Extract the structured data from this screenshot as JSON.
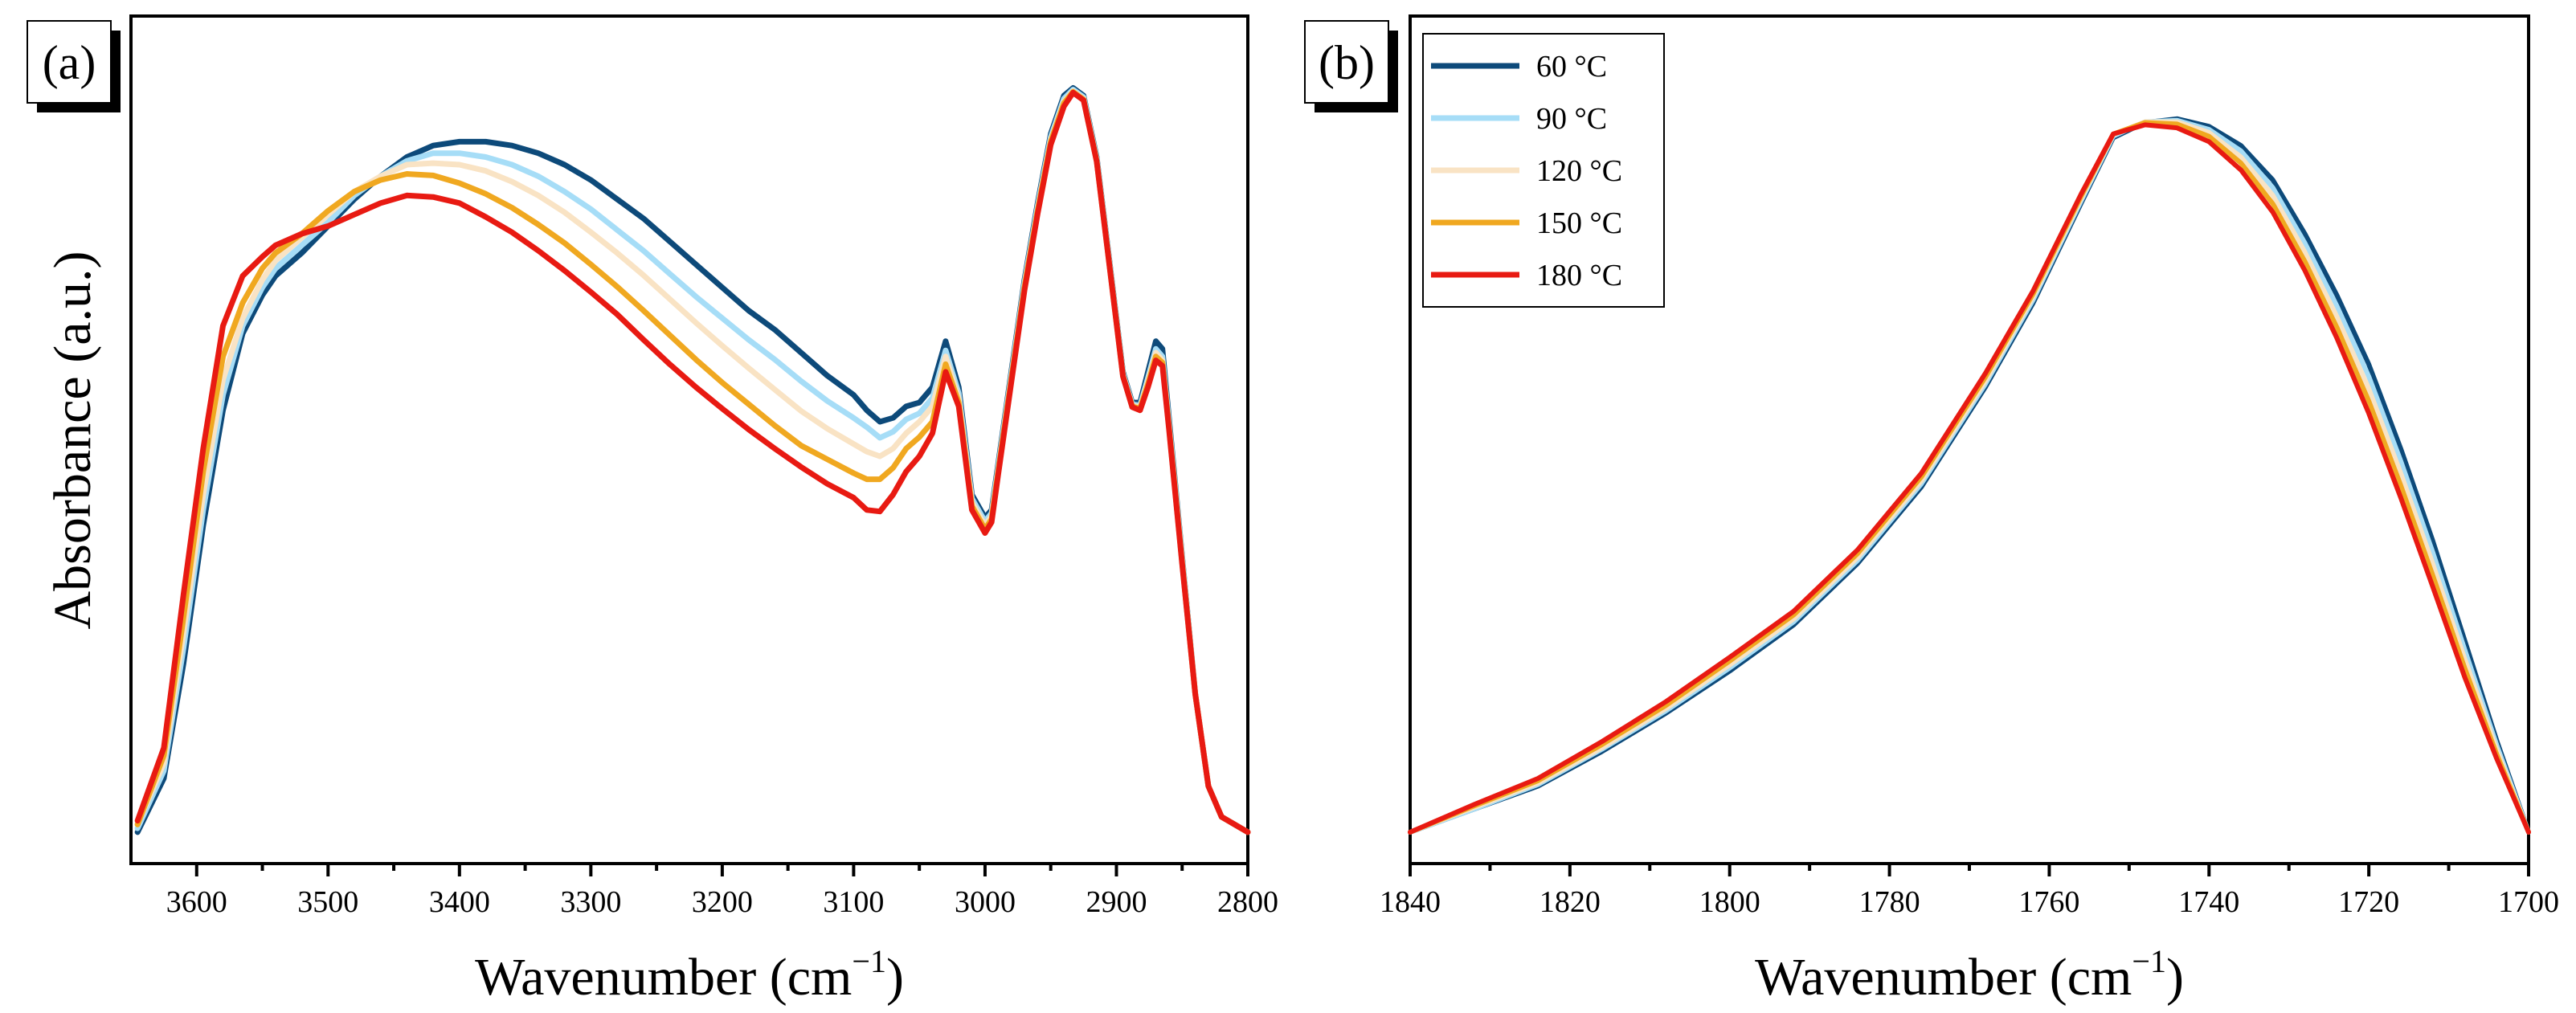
{
  "chart_data": [
    {
      "panel": "(a)",
      "type": "line",
      "xlabel_main": "Wavenumber (cm",
      "xlabel_sup": "−1",
      "xlabel_close": ")",
      "ylabel": "Absorbance (a.u.)",
      "xlim": [
        3650,
        2800
      ],
      "ylim": [
        0,
        1
      ],
      "xticks": [
        3600,
        3500,
        3400,
        3300,
        3200,
        3100,
        3000,
        2900,
        2800
      ],
      "series": [
        {
          "name": "60 °C",
          "color": "#0d4a7a",
          "x": [
            3645,
            3625,
            3610,
            3595,
            3580,
            3565,
            3550,
            3540,
            3520,
            3500,
            3480,
            3460,
            3440,
            3420,
            3400,
            3380,
            3360,
            3340,
            3320,
            3300,
            3280,
            3260,
            3240,
            3220,
            3200,
            3180,
            3160,
            3140,
            3120,
            3100,
            3090,
            3080,
            3070,
            3060,
            3050,
            3040,
            3030,
            3020,
            3010,
            3000,
            2995,
            2990,
            2980,
            2970,
            2960,
            2950,
            2940,
            2933,
            2925,
            2915,
            2905,
            2895,
            2888,
            2882,
            2876,
            2870,
            2865,
            2860,
            2850,
            2840,
            2830,
            2820,
            2810,
            2800
          ],
          "y": [
            0.02,
            0.09,
            0.24,
            0.42,
            0.57,
            0.67,
            0.72,
            0.745,
            0.775,
            0.81,
            0.845,
            0.875,
            0.9,
            0.915,
            0.92,
            0.92,
            0.915,
            0.905,
            0.89,
            0.87,
            0.845,
            0.82,
            0.79,
            0.76,
            0.73,
            0.7,
            0.675,
            0.645,
            0.615,
            0.59,
            0.57,
            0.555,
            0.56,
            0.575,
            0.58,
            0.6,
            0.66,
            0.6,
            0.46,
            0.43,
            0.44,
            0.5,
            0.62,
            0.74,
            0.84,
            0.93,
            0.98,
            0.99,
            0.98,
            0.9,
            0.76,
            0.62,
            0.58,
            0.58,
            0.62,
            0.66,
            0.65,
            0.56,
            0.38,
            0.2,
            0.08,
            0.04,
            0.03,
            0.02
          ]
        },
        {
          "name": "90 °C",
          "color": "#a6ddf7",
          "x": [
            3645,
            3625,
            3610,
            3595,
            3580,
            3565,
            3550,
            3540,
            3520,
            3500,
            3480,
            3460,
            3440,
            3420,
            3400,
            3380,
            3360,
            3340,
            3320,
            3300,
            3280,
            3260,
            3240,
            3220,
            3200,
            3180,
            3160,
            3140,
            3120,
            3100,
            3090,
            3080,
            3070,
            3060,
            3050,
            3040,
            3030,
            3020,
            3010,
            3000,
            2995,
            2990,
            2980,
            2970,
            2960,
            2950,
            2940,
            2933,
            2925,
            2915,
            2905,
            2895,
            2888,
            2882,
            2876,
            2870,
            2865,
            2860,
            2850,
            2840,
            2830,
            2820,
            2810,
            2800
          ],
          "y": [
            0.025,
            0.1,
            0.26,
            0.44,
            0.59,
            0.68,
            0.73,
            0.755,
            0.785,
            0.815,
            0.85,
            0.875,
            0.895,
            0.905,
            0.905,
            0.9,
            0.89,
            0.875,
            0.855,
            0.832,
            0.805,
            0.778,
            0.748,
            0.718,
            0.69,
            0.662,
            0.636,
            0.608,
            0.582,
            0.56,
            0.548,
            0.534,
            0.542,
            0.558,
            0.566,
            0.586,
            0.648,
            0.592,
            0.455,
            0.425,
            0.436,
            0.496,
            0.616,
            0.736,
            0.836,
            0.926,
            0.976,
            0.988,
            0.978,
            0.898,
            0.758,
            0.618,
            0.578,
            0.576,
            0.612,
            0.65,
            0.64,
            0.554,
            0.378,
            0.2,
            0.08,
            0.04,
            0.03,
            0.02
          ]
        },
        {
          "name": "120 °C",
          "color": "#f9e3c4",
          "x": [
            3645,
            3625,
            3610,
            3595,
            3580,
            3565,
            3550,
            3540,
            3520,
            3500,
            3480,
            3460,
            3440,
            3420,
            3400,
            3380,
            3360,
            3340,
            3320,
            3300,
            3280,
            3260,
            3240,
            3220,
            3200,
            3180,
            3160,
            3140,
            3120,
            3100,
            3090,
            3080,
            3070,
            3060,
            3050,
            3040,
            3030,
            3020,
            3010,
            3000,
            2995,
            2990,
            2980,
            2970,
            2960,
            2950,
            2940,
            2933,
            2925,
            2915,
            2905,
            2895,
            2888,
            2882,
            2876,
            2870,
            2865,
            2860,
            2850,
            2840,
            2830,
            2820,
            2810,
            2800
          ],
          "y": [
            0.03,
            0.11,
            0.28,
            0.46,
            0.61,
            0.69,
            0.74,
            0.765,
            0.795,
            0.825,
            0.855,
            0.875,
            0.89,
            0.892,
            0.89,
            0.882,
            0.868,
            0.85,
            0.828,
            0.802,
            0.775,
            0.746,
            0.715,
            0.684,
            0.654,
            0.625,
            0.597,
            0.569,
            0.546,
            0.526,
            0.516,
            0.51,
            0.52,
            0.54,
            0.555,
            0.575,
            0.64,
            0.585,
            0.45,
            0.42,
            0.432,
            0.492,
            0.612,
            0.732,
            0.832,
            0.922,
            0.972,
            0.986,
            0.976,
            0.896,
            0.756,
            0.616,
            0.576,
            0.574,
            0.608,
            0.645,
            0.635,
            0.55,
            0.375,
            0.2,
            0.08,
            0.04,
            0.03,
            0.02
          ]
        },
        {
          "name": "150 °C",
          "color": "#f0a820",
          "x": [
            3645,
            3625,
            3610,
            3595,
            3580,
            3565,
            3550,
            3540,
            3520,
            3500,
            3480,
            3460,
            3440,
            3420,
            3400,
            3380,
            3360,
            3340,
            3320,
            3300,
            3280,
            3260,
            3240,
            3220,
            3200,
            3180,
            3160,
            3140,
            3120,
            3100,
            3090,
            3080,
            3070,
            3060,
            3050,
            3040,
            3030,
            3020,
            3010,
            3000,
            2995,
            2990,
            2980,
            2970,
            2960,
            2950,
            2940,
            2933,
            2925,
            2915,
            2905,
            2895,
            2888,
            2882,
            2876,
            2870,
            2865,
            2860,
            2850,
            2840,
            2830,
            2820,
            2810,
            2800
          ],
          "y": [
            0.03,
            0.12,
            0.3,
            0.49,
            0.64,
            0.71,
            0.755,
            0.775,
            0.8,
            0.83,
            0.855,
            0.87,
            0.878,
            0.876,
            0.866,
            0.852,
            0.834,
            0.812,
            0.788,
            0.76,
            0.731,
            0.7,
            0.668,
            0.636,
            0.606,
            0.578,
            0.55,
            0.524,
            0.506,
            0.488,
            0.48,
            0.48,
            0.495,
            0.52,
            0.535,
            0.555,
            0.63,
            0.58,
            0.445,
            0.415,
            0.428,
            0.49,
            0.61,
            0.73,
            0.83,
            0.92,
            0.97,
            0.985,
            0.975,
            0.895,
            0.755,
            0.615,
            0.575,
            0.572,
            0.604,
            0.64,
            0.632,
            0.548,
            0.372,
            0.2,
            0.08,
            0.04,
            0.03,
            0.02
          ]
        },
        {
          "name": "180 °C",
          "color": "#e81a12",
          "x": [
            3645,
            3625,
            3610,
            3595,
            3580,
            3565,
            3550,
            3540,
            3520,
            3500,
            3480,
            3460,
            3440,
            3420,
            3400,
            3380,
            3360,
            3340,
            3320,
            3300,
            3280,
            3260,
            3240,
            3220,
            3200,
            3180,
            3160,
            3140,
            3120,
            3100,
            3090,
            3080,
            3070,
            3060,
            3050,
            3040,
            3030,
            3020,
            3010,
            3000,
            2995,
            2990,
            2980,
            2970,
            2960,
            2950,
            2940,
            2933,
            2925,
            2915,
            2905,
            2895,
            2888,
            2882,
            2876,
            2870,
            2865,
            2860,
            2850,
            2840,
            2830,
            2820,
            2810,
            2800
          ],
          "y": [
            0.035,
            0.13,
            0.33,
            0.52,
            0.68,
            0.745,
            0.77,
            0.785,
            0.8,
            0.81,
            0.825,
            0.84,
            0.85,
            0.848,
            0.84,
            0.822,
            0.802,
            0.778,
            0.752,
            0.724,
            0.695,
            0.662,
            0.63,
            0.6,
            0.572,
            0.545,
            0.52,
            0.496,
            0.474,
            0.456,
            0.44,
            0.438,
            0.46,
            0.49,
            0.51,
            0.54,
            0.62,
            0.575,
            0.44,
            0.41,
            0.424,
            0.486,
            0.606,
            0.726,
            0.826,
            0.916,
            0.966,
            0.984,
            0.974,
            0.894,
            0.754,
            0.614,
            0.574,
            0.57,
            0.6,
            0.635,
            0.628,
            0.545,
            0.37,
            0.2,
            0.08,
            0.04,
            0.03,
            0.02
          ]
        }
      ]
    },
    {
      "panel": "(b)",
      "type": "line",
      "xlabel_main": "Wavenumber (cm",
      "xlabel_sup": "−1",
      "xlabel_close": ")",
      "ylabel": "",
      "xlim": [
        1840,
        1700
      ],
      "ylim": [
        0,
        1
      ],
      "xticks": [
        1840,
        1820,
        1800,
        1780,
        1760,
        1740,
        1720,
        1700
      ],
      "legend": [
        "60 °C",
        "90 °C",
        "120 °C",
        "150 °C",
        "180 °C"
      ],
      "series": [
        {
          "name": "60 °C",
          "color": "#0d4a7a",
          "x": [
            1840,
            1832,
            1824,
            1816,
            1808,
            1800,
            1792,
            1784,
            1776,
            1768,
            1762,
            1756,
            1752,
            1748,
            1744,
            1740,
            1736,
            1732,
            1728,
            1724,
            1720,
            1716,
            1712,
            1708,
            1704,
            1700
          ],
          "y": [
            0.02,
            0.05,
            0.08,
            0.125,
            0.175,
            0.23,
            0.29,
            0.37,
            0.47,
            0.6,
            0.71,
            0.84,
            0.925,
            0.945,
            0.95,
            0.94,
            0.915,
            0.87,
            0.8,
            0.72,
            0.63,
            0.52,
            0.4,
            0.27,
            0.14,
            0.02
          ]
        },
        {
          "name": "90 °C",
          "color": "#a6ddf7",
          "x": [
            1840,
            1832,
            1824,
            1816,
            1808,
            1800,
            1792,
            1784,
            1776,
            1768,
            1762,
            1756,
            1752,
            1748,
            1744,
            1740,
            1736,
            1732,
            1728,
            1724,
            1720,
            1716,
            1712,
            1708,
            1704,
            1700
          ],
          "y": [
            0.02,
            0.05,
            0.082,
            0.128,
            0.178,
            0.234,
            0.294,
            0.374,
            0.474,
            0.604,
            0.714,
            0.843,
            0.927,
            0.946,
            0.948,
            0.936,
            0.908,
            0.86,
            0.788,
            0.706,
            0.614,
            0.504,
            0.385,
            0.258,
            0.134,
            0.02
          ]
        },
        {
          "name": "120 °C",
          "color": "#f9e3c4",
          "x": [
            1840,
            1832,
            1824,
            1816,
            1808,
            1800,
            1792,
            1784,
            1776,
            1768,
            1762,
            1756,
            1752,
            1748,
            1744,
            1740,
            1736,
            1732,
            1728,
            1724,
            1720,
            1716,
            1712,
            1708,
            1704,
            1700
          ],
          "y": [
            0.02,
            0.052,
            0.084,
            0.13,
            0.181,
            0.238,
            0.298,
            0.378,
            0.478,
            0.608,
            0.718,
            0.846,
            0.929,
            0.946,
            0.946,
            0.932,
            0.9,
            0.85,
            0.776,
            0.692,
            0.598,
            0.488,
            0.37,
            0.246,
            0.128,
            0.02
          ]
        },
        {
          "name": "150 °C",
          "color": "#f0a820",
          "x": [
            1840,
            1832,
            1824,
            1816,
            1808,
            1800,
            1792,
            1784,
            1776,
            1768,
            1762,
            1756,
            1752,
            1748,
            1744,
            1740,
            1736,
            1732,
            1728,
            1724,
            1720,
            1716,
            1712,
            1708,
            1704,
            1700
          ],
          "y": [
            0.02,
            0.054,
            0.087,
            0.134,
            0.185,
            0.243,
            0.303,
            0.383,
            0.483,
            0.613,
            0.722,
            0.849,
            0.93,
            0.945,
            0.943,
            0.927,
            0.892,
            0.839,
            0.764,
            0.678,
            0.582,
            0.472,
            0.355,
            0.234,
            0.122,
            0.02
          ]
        },
        {
          "name": "180 °C",
          "color": "#e81a12",
          "x": [
            1840,
            1832,
            1824,
            1816,
            1808,
            1800,
            1792,
            1784,
            1776,
            1768,
            1762,
            1756,
            1752,
            1748,
            1744,
            1740,
            1736,
            1732,
            1728,
            1724,
            1720,
            1716,
            1712,
            1708,
            1704,
            1700
          ],
          "y": [
            0.02,
            0.056,
            0.09,
            0.138,
            0.19,
            0.248,
            0.308,
            0.388,
            0.488,
            0.618,
            0.726,
            0.852,
            0.93,
            0.942,
            0.938,
            0.92,
            0.883,
            0.828,
            0.752,
            0.664,
            0.566,
            0.456,
            0.34,
            0.222,
            0.116,
            0.02
          ]
        }
      ]
    }
  ]
}
